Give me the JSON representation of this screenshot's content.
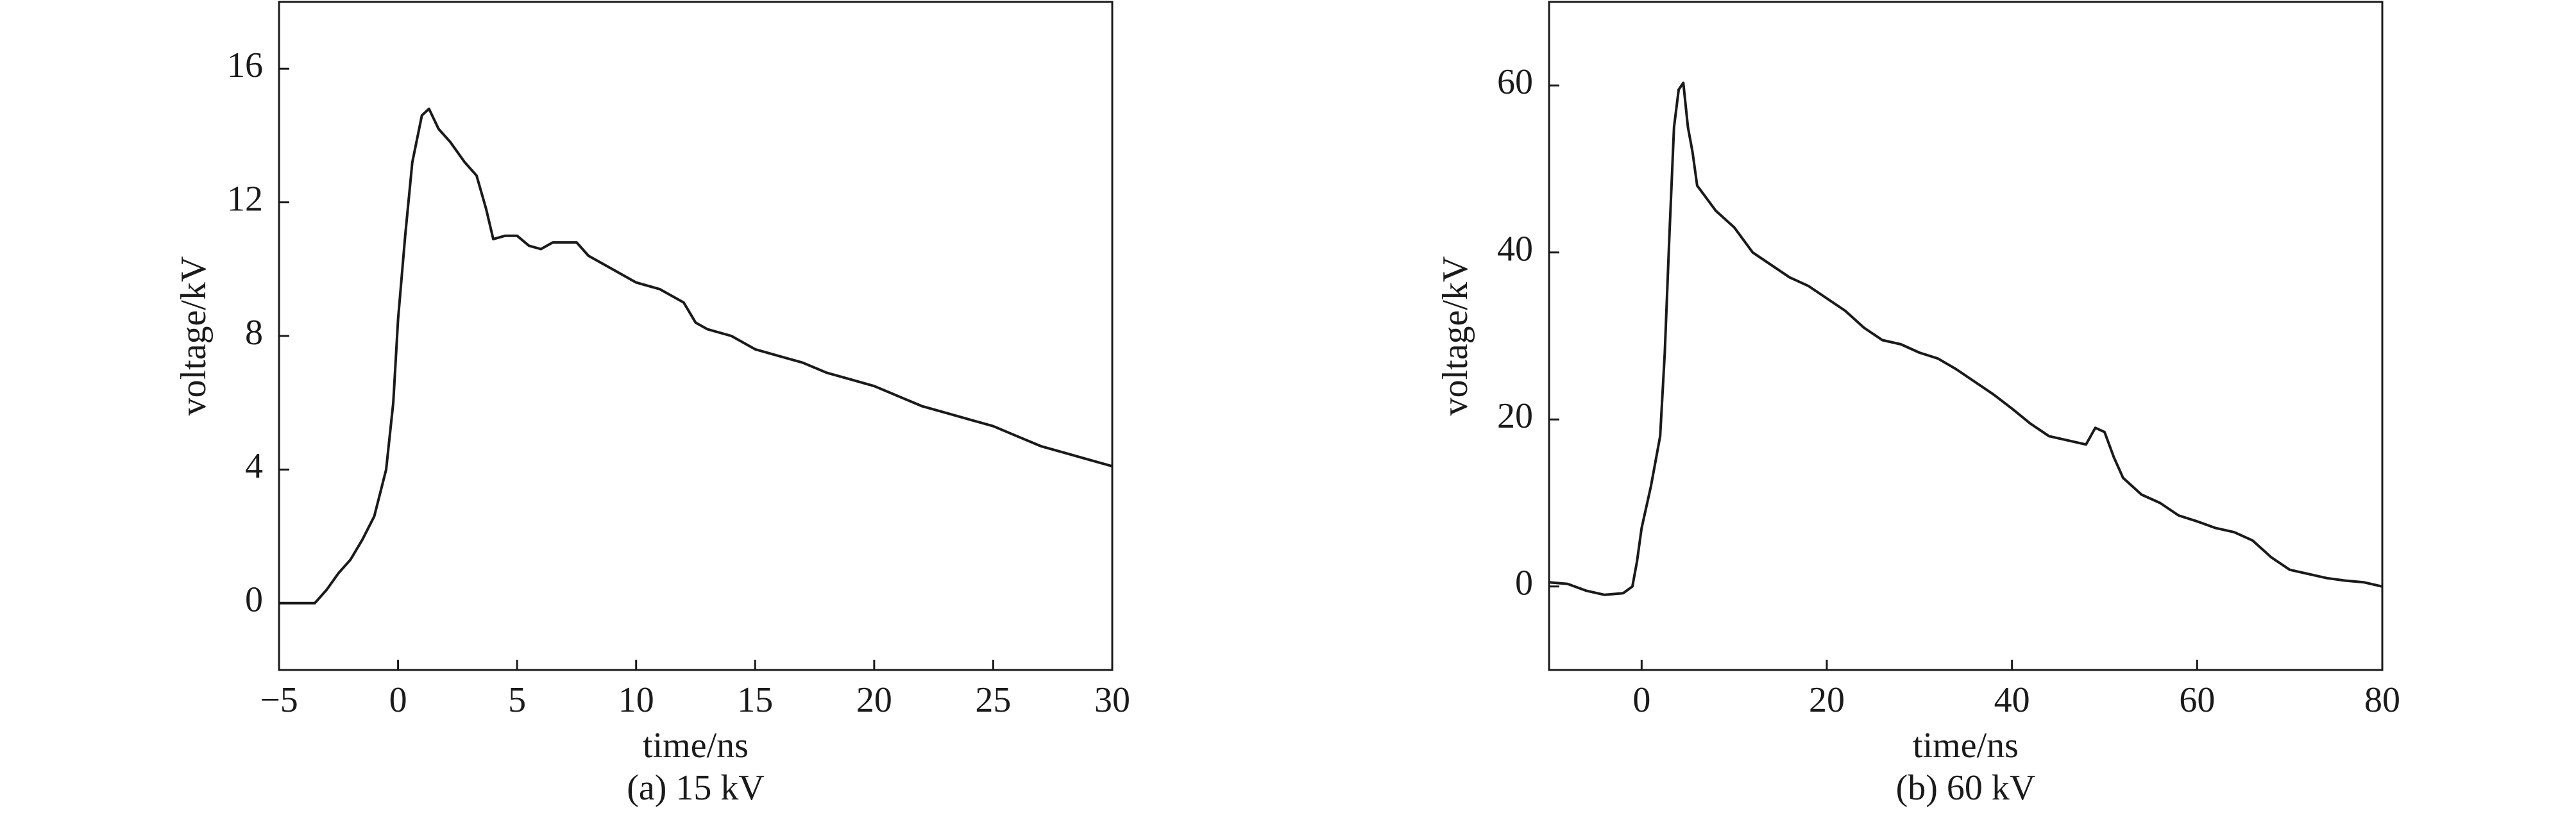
{
  "chart_data": [
    {
      "type": "line",
      "caption": "(a) 15 kV",
      "x_label": "time/ns",
      "y_label": "voltage/kV",
      "xlim": [
        -5,
        30
      ],
      "ylim": [
        -2,
        18
      ],
      "xticks": [
        {
          "value": -5,
          "label": "−5"
        },
        0,
        5,
        10,
        15,
        20,
        25,
        30
      ],
      "yticks": [
        0,
        4,
        8,
        12,
        16
      ],
      "series": [
        {
          "color": "#1a1a1a",
          "x": [
            -5,
            -4,
            -3.5,
            -3,
            -2.5,
            -2,
            -1.5,
            -1,
            -0.5,
            -0.2,
            0,
            0.3,
            0.6,
            1,
            1.3,
            1.7,
            2.2,
            2.8,
            3.3,
            3.7,
            4,
            4.5,
            5,
            5.5,
            6,
            6.5,
            7,
            7.5,
            8,
            9,
            10,
            11,
            12,
            12.5,
            13,
            14,
            15,
            16,
            17,
            18,
            19,
            20,
            21,
            22,
            23,
            24,
            25,
            26,
            27,
            28,
            29,
            30
          ],
          "values": [
            0,
            0,
            0,
            0.4,
            0.9,
            1.3,
            1.9,
            2.6,
            4,
            6,
            8.5,
            11,
            13.2,
            14.6,
            14.8,
            14.2,
            13.8,
            13.2,
            12.8,
            11.8,
            10.9,
            11,
            11,
            10.7,
            10.6,
            10.8,
            10.8,
            10.8,
            10.4,
            10,
            9.6,
            9.4,
            9,
            8.4,
            8.2,
            8,
            7.6,
            7.4,
            7.2,
            6.9,
            6.7,
            6.5,
            6.2,
            5.9,
            5.7,
            5.5,
            5.3,
            5,
            4.7,
            4.5,
            4.3,
            4.1
          ]
        }
      ]
    },
    {
      "type": "line",
      "caption": "(b) 60 kV",
      "x_label": "time/ns",
      "y_label": "voltage/kV",
      "xlim": [
        -10,
        80
      ],
      "ylim": [
        -10,
        70
      ],
      "xticks": [
        0,
        20,
        40,
        60,
        80
      ],
      "yticks": [
        0,
        20,
        40,
        60
      ],
      "series": [
        {
          "color": "#1a1a1a",
          "x": [
            -10,
            -8,
            -6,
            -4,
            -2,
            -1,
            -0.5,
            0,
            1,
            2,
            2.5,
            3,
            3.5,
            4,
            4.5,
            5,
            5.5,
            6,
            7,
            8,
            10,
            12,
            14,
            16,
            18,
            20,
            22,
            24,
            26,
            28,
            30,
            32,
            34,
            36,
            38,
            40,
            42,
            44,
            46,
            48,
            49,
            50,
            51,
            52,
            54,
            56,
            58,
            60,
            62,
            64,
            66,
            68,
            70,
            72,
            74,
            76,
            78,
            80
          ],
          "values": [
            0.5,
            0.3,
            -0.5,
            -1,
            -0.8,
            0,
            3,
            7,
            12,
            18,
            28,
            42,
            55,
            59.5,
            60.3,
            55,
            52,
            48,
            46.5,
            45,
            43,
            40,
            38.5,
            37,
            36,
            34.5,
            33,
            31,
            29.5,
            29,
            28,
            27.3,
            26,
            24.5,
            23,
            21.3,
            19.5,
            18,
            17.5,
            17,
            19,
            18.5,
            15.5,
            13,
            11,
            10,
            8.5,
            7.8,
            7,
            6.5,
            5.5,
            3.5,
            2,
            1.5,
            1,
            0.7,
            0.5,
            0
          ]
        }
      ]
    }
  ]
}
